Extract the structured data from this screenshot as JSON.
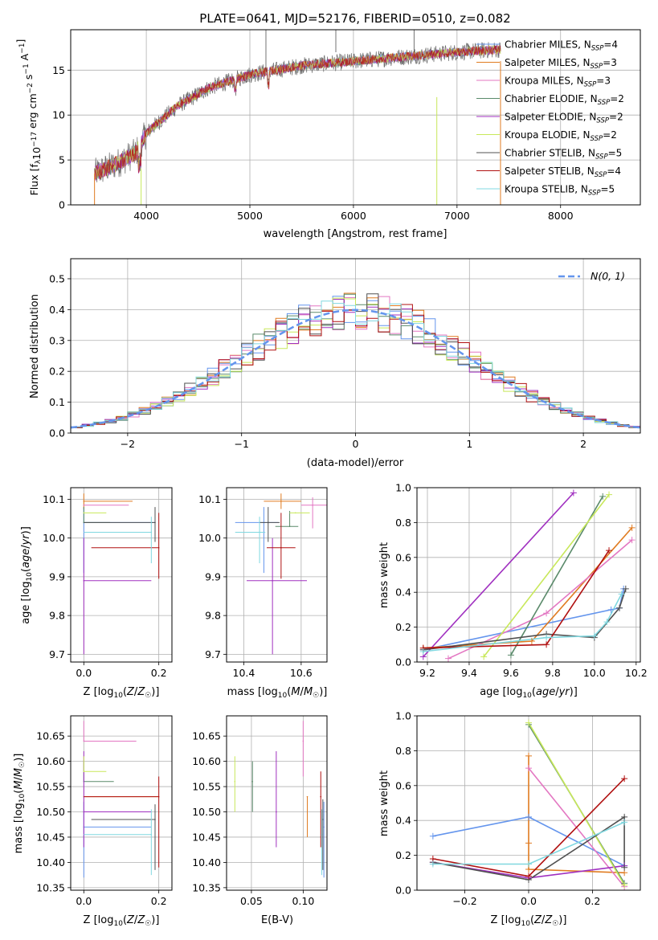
{
  "colors": [
    "#6495ed",
    "#e07b20",
    "#e377c2",
    "#5a8a6a",
    "#a030c0",
    "#c8e85a",
    "#505050",
    "#b01010",
    "#80d8e0"
  ],
  "chart_data": [
    {
      "type": "line",
      "title": "PLATE=0641, MJD=52176, FIBERID=0510, z=0.082",
      "xlabel": "wavelength [Angstrom, rest frame]",
      "ylabel": "Flux [f_λ 10^-17 erg cm^-2 s^-1 A^-1]",
      "xlim": [
        3270,
        8770
      ],
      "ylim": [
        0,
        19.5
      ],
      "xticks": [
        4000,
        5000,
        6000,
        7000,
        8000
      ],
      "yticks": [
        0,
        5,
        10,
        15
      ],
      "grid": true,
      "legend_position": "top-right",
      "legend": [
        {
          "label": "Chabrier MILES, N",
          "sub": "SSP",
          "suffix": "=4"
        },
        {
          "label": "Salpeter MILES, N",
          "sub": "SSP",
          "suffix": "=3"
        },
        {
          "label": "Kroupa MILES, N",
          "sub": "SSP",
          "suffix": "=3"
        },
        {
          "label": "Chabrier ELODIE, N",
          "sub": "SSP",
          "suffix": "=2"
        },
        {
          "label": "Salpeter ELODIE, N",
          "sub": "SSP",
          "suffix": "=2"
        },
        {
          "label": "Kroupa ELODIE, N",
          "sub": "SSP",
          "suffix": "=2"
        },
        {
          "label": "Chabrier STELIB, N",
          "sub": "SSP",
          "suffix": "=5"
        },
        {
          "label": "Salpeter STELIB, N",
          "sub": "SSP",
          "suffix": "=4"
        },
        {
          "label": "Kroupa STELIB, N",
          "sub": "SSP",
          "suffix": "=5"
        }
      ],
      "continuum": {
        "x": [
          3500,
          3700,
          3900,
          4000,
          4300,
          4600,
          5000,
          5500,
          6000,
          6500,
          7000,
          7400
        ],
        "y": [
          3.5,
          4.5,
          5.8,
          8.0,
          11.0,
          13.0,
          14.5,
          15.5,
          16.0,
          16.5,
          17.0,
          17.3
        ]
      }
    },
    {
      "type": "bar",
      "xlabel": "(data-model)/error",
      "ylabel": "Normed distribution",
      "xlim": [
        -2.5,
        2.5
      ],
      "ylim": [
        0,
        0.565
      ],
      "xticks": [
        -2,
        -1,
        0,
        1,
        2
      ],
      "yticks": [
        0.0,
        0.1,
        0.2,
        0.3,
        0.4,
        0.5
      ],
      "grid": true,
      "legend_position": "top-right",
      "reference_curve": "N(0,1)",
      "bin_width": 0.1
    },
    {
      "type": "scatter",
      "xlabel": "Z [log10(Z/Z☉)]",
      "ylabel": "age  [log10(age/yr)]",
      "xlim": [
        -0.035,
        0.235
      ],
      "ylim": [
        9.68,
        10.13
      ],
      "xticks": [
        0.0,
        0.2
      ],
      "yticks": [
        9.7,
        9.8,
        9.9,
        10.0,
        10.1
      ],
      "grid": true,
      "points": [
        {
          "x": 0.0,
          "y": 10.04,
          "xerr": [
            0.0,
            0.19
          ],
          "yerr": [
            0.13,
            0.04
          ]
        },
        {
          "x": 0.0,
          "y": 10.095,
          "xerr": [
            0.0,
            0.13
          ],
          "yerr": [
            0.02,
            0.02
          ]
        },
        {
          "x": 0.0,
          "y": 10.085,
          "xerr": [
            0.0,
            0.12
          ],
          "yerr": [
            0.0,
            0.0
          ]
        },
        {
          "x": 0.0,
          "y": 10.04,
          "xerr": [
            0.0,
            0.07
          ],
          "yerr": [
            0.0,
            0.04
          ]
        },
        {
          "x": 0.0,
          "y": 9.89,
          "xerr": [
            0.0,
            0.18
          ],
          "yerr": [
            0.19,
            0.11
          ]
        },
        {
          "x": 0.0,
          "y": 10.065,
          "xerr": [
            0.0,
            0.06
          ],
          "yerr": [
            0.0,
            0.0
          ]
        },
        {
          "x": 0.19,
          "y": 10.04,
          "xerr": [
            0.19,
            0.0
          ],
          "yerr": [
            0.05,
            0.04
          ]
        },
        {
          "x": 0.2,
          "y": 9.975,
          "xerr": [
            0.18,
            0.0
          ],
          "yerr": [
            0.08,
            0.09
          ]
        },
        {
          "x": 0.18,
          "y": 10.015,
          "xerr": [
            0.18,
            0.0
          ],
          "yerr": [
            0.08,
            0.04
          ]
        }
      ]
    },
    {
      "type": "scatter",
      "xlabel": "mass [log10(M/M☉)]",
      "ylabel": "",
      "xlim": [
        10.34,
        10.69
      ],
      "ylim": [
        9.68,
        10.13
      ],
      "xticks": [
        10.4,
        10.6
      ],
      "yticks": [
        9.7,
        9.8,
        9.9,
        10.0,
        10.1
      ],
      "grid": true,
      "points": [
        {
          "x": 10.47,
          "y": 10.04,
          "xerr": [
            0.1,
            0.05
          ],
          "yerr": [
            0.13,
            0.04
          ]
        },
        {
          "x": 10.53,
          "y": 10.095,
          "xerr": [
            0.06,
            0.07
          ],
          "yerr": [
            0.02,
            0.02
          ]
        },
        {
          "x": 10.64,
          "y": 10.085,
          "xerr": [
            0.04,
            0.05
          ],
          "yerr": [
            0.06,
            0.02
          ]
        },
        {
          "x": 10.56,
          "y": 10.03,
          "xerr": [
            0.05,
            0.03
          ],
          "yerr": [
            0.0,
            0.04
          ]
        },
        {
          "x": 10.5,
          "y": 9.89,
          "xerr": [
            0.09,
            0.12
          ],
          "yerr": [
            0.19,
            0.11
          ]
        },
        {
          "x": 10.58,
          "y": 10.065,
          "xerr": [
            0.02,
            0.05
          ],
          "yerr": [
            0.0,
            0.0
          ]
        },
        {
          "x": 10.485,
          "y": 10.04,
          "xerr": [
            0.03,
            0.04
          ],
          "yerr": [
            0.05,
            0.04
          ]
        },
        {
          "x": 10.53,
          "y": 9.975,
          "xerr": [
            0.05,
            0.05
          ],
          "yerr": [
            0.08,
            0.09
          ]
        },
        {
          "x": 10.455,
          "y": 10.015,
          "xerr": [
            0.085,
            0.02
          ],
          "yerr": [
            0.08,
            0.04
          ]
        }
      ]
    },
    {
      "type": "line",
      "xlabel": "age  [log10(age/yr)]",
      "ylabel": "mass weight",
      "xlim": [
        9.15,
        10.22
      ],
      "ylim": [
        0.0,
        1.0
      ],
      "xticks": [
        9.2,
        9.4,
        9.6,
        9.8,
        10.0,
        10.2
      ],
      "yticks": [
        0.0,
        0.2,
        0.4,
        0.6,
        0.8,
        1.0
      ],
      "grid": true,
      "series": [
        {
          "x": [
            9.18,
            10.08,
            10.12,
            10.14
          ],
          "y": [
            0.07,
            0.3,
            0.31,
            0.42
          ]
        },
        {
          "x": [
            9.18,
            9.7,
            10.18
          ],
          "y": [
            0.08,
            0.12,
            0.77
          ]
        },
        {
          "x": [
            9.3,
            9.77,
            10.18
          ],
          "y": [
            0.02,
            0.28,
            0.7
          ]
        },
        {
          "x": [
            9.6,
            10.04
          ],
          "y": [
            0.04,
            0.95
          ]
        },
        {
          "x": [
            9.18,
            9.9
          ],
          "y": [
            0.03,
            0.97
          ]
        },
        {
          "x": [
            9.47,
            10.07
          ],
          "y": [
            0.03,
            0.96
          ]
        },
        {
          "x": [
            9.18,
            9.77,
            10.0,
            10.12,
            10.15
          ],
          "y": [
            0.07,
            0.16,
            0.14,
            0.31,
            0.42
          ]
        },
        {
          "x": [
            9.18,
            9.77,
            10.07
          ],
          "y": [
            0.08,
            0.1,
            0.64
          ]
        },
        {
          "x": [
            9.18,
            9.77,
            10.0,
            10.06,
            10.13
          ],
          "y": [
            0.06,
            0.14,
            0.15,
            0.23,
            0.39
          ]
        }
      ]
    },
    {
      "type": "scatter",
      "xlabel": "Z [log10(Z/Z☉)]",
      "ylabel": "mass [log10(M/M☉)]",
      "xlim": [
        -0.035,
        0.235
      ],
      "ylim": [
        10.345,
        10.69
      ],
      "xticks": [
        0.0,
        0.2
      ],
      "yticks": [
        10.35,
        10.4,
        10.45,
        10.5,
        10.55,
        10.6,
        10.65
      ],
      "grid": true,
      "points": [
        {
          "x": 0.0,
          "y": 10.47,
          "xerr": [
            0.0,
            0.18
          ],
          "yerr": [
            0.1,
            0.05
          ]
        },
        {
          "x": 0.0,
          "y": 10.53,
          "xerr": [
            0.0,
            0.2
          ],
          "yerr": [
            0.0,
            0.0
          ]
        },
        {
          "x": 0.0,
          "y": 10.64,
          "xerr": [
            0.0,
            0.14
          ],
          "yerr": [
            0.0,
            0.04
          ]
        },
        {
          "x": 0.0,
          "y": 10.56,
          "xerr": [
            0.0,
            0.08
          ],
          "yerr": [
            0.0,
            0.04
          ]
        },
        {
          "x": 0.0,
          "y": 10.5,
          "xerr": [
            0.0,
            0.18
          ],
          "yerr": [
            0.07,
            0.12
          ]
        },
        {
          "x": 0.0,
          "y": 10.58,
          "xerr": [
            0.0,
            0.06
          ],
          "yerr": [
            0.0,
            0.03
          ]
        },
        {
          "x": 0.19,
          "y": 10.485,
          "xerr": [
            0.17,
            0.0
          ],
          "yerr": [
            0.1,
            0.03
          ]
        },
        {
          "x": 0.2,
          "y": 10.53,
          "xerr": [
            0.2,
            0.0
          ],
          "yerr": [
            0.14,
            0.04
          ]
        },
        {
          "x": 0.18,
          "y": 10.455,
          "xerr": [
            0.18,
            0.0
          ],
          "yerr": [
            0.08,
            0.05
          ]
        }
      ]
    },
    {
      "type": "scatter",
      "xlabel": "E(B-V)",
      "ylabel": "",
      "xlim": [
        0.026,
        0.123
      ],
      "ylim": [
        10.345,
        10.69
      ],
      "xticks": [
        0.05,
        0.1
      ],
      "yticks": [
        10.35,
        10.4,
        10.45,
        10.5,
        10.55,
        10.6,
        10.65
      ],
      "grid": true,
      "points": [
        {
          "x": 0.12,
          "y": 10.47,
          "yerr": [
            0.1,
            0.05
          ]
        },
        {
          "x": 0.104,
          "y": 10.53,
          "yerr": [
            0.08,
            0.0
          ]
        },
        {
          "x": 0.1,
          "y": 10.64,
          "yerr": [
            0.07,
            0.04
          ]
        },
        {
          "x": 0.051,
          "y": 10.56,
          "yerr": [
            0.06,
            0.04
          ]
        },
        {
          "x": 0.074,
          "y": 10.5,
          "yerr": [
            0.07,
            0.12
          ]
        },
        {
          "x": 0.034,
          "y": 10.56,
          "yerr": [
            0.06,
            0.05
          ]
        },
        {
          "x": 0.119,
          "y": 10.485,
          "yerr": [
            0.1,
            0.04
          ]
        },
        {
          "x": 0.117,
          "y": 10.53,
          "yerr": [
            0.1,
            0.05
          ]
        },
        {
          "x": 0.118,
          "y": 10.455,
          "yerr": [
            0.08,
            0.05
          ]
        }
      ]
    },
    {
      "type": "line",
      "xlabel": "Z [log10(Z/Z☉)]",
      "ylabel": "mass weight",
      "xlim": [
        -0.35,
        0.35
      ],
      "ylim": [
        0.0,
        1.0
      ],
      "xticks": [
        -0.2,
        0.0,
        0.2
      ],
      "yticks": [
        0.0,
        0.2,
        0.4,
        0.6,
        0.8,
        1.0
      ],
      "grid": true,
      "series": [
        {
          "x": [
            -0.3,
            0.0,
            0.3
          ],
          "y": [
            0.31,
            0.42,
            0.14
          ]
        },
        {
          "x": [
            0.0,
            0.0,
            0.0,
            0.0,
            0.3
          ],
          "y": [
            0.77,
            0.27,
            0.12,
            0.12,
            0.1
          ]
        },
        {
          "x": [
            0.0,
            0.3
          ],
          "y": [
            0.7,
            0.02
          ]
        },
        {
          "x": [
            0.0,
            0.3
          ],
          "y": [
            0.95,
            0.04
          ]
        },
        {
          "x": [
            -0.3,
            0.0,
            0.3
          ],
          "y": [
            0.16,
            0.07,
            0.14
          ]
        },
        {
          "x": [
            0.0,
            0.3
          ],
          "y": [
            0.96,
            0.03
          ]
        },
        {
          "x": [
            -0.3,
            0.0,
            0.3,
            0.3
          ],
          "y": [
            0.16,
            0.06,
            0.42,
            0.13
          ]
        },
        {
          "x": [
            -0.3,
            0.0,
            0.3
          ],
          "y": [
            0.18,
            0.08,
            0.64
          ]
        },
        {
          "x": [
            -0.3,
            0.0,
            0.3
          ],
          "y": [
            0.15,
            0.15,
            0.39
          ]
        }
      ]
    }
  ]
}
